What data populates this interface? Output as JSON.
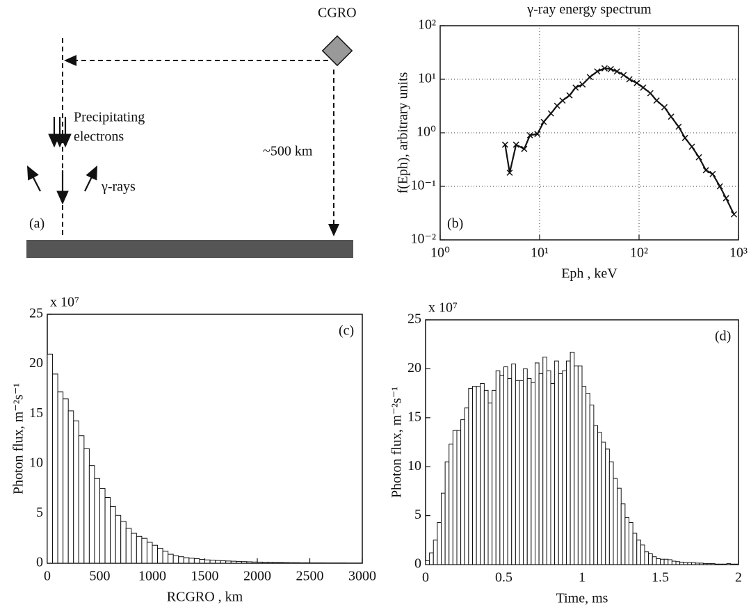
{
  "diagram": {
    "satellite": "CGRO",
    "electrons": [
      "Precipitating",
      "electrons"
    ],
    "altitude": "~500 km",
    "gamma": "γ-rays",
    "panel": "(a)"
  },
  "chart_data": [
    {
      "type": "line",
      "title": "γ-ray energy spectrum",
      "x_label": "Eph , keV",
      "y_label": "f(Eph), arbitrary units",
      "panel": "(b)",
      "xscale": "log",
      "yscale": "log",
      "grid": true,
      "marker": "x",
      "color": "#111111",
      "xlim": [
        1,
        1000
      ],
      "ylim": [
        0.01,
        100
      ],
      "xticks": [
        {
          "value": 1,
          "label": "10⁰"
        },
        {
          "value": 10,
          "label": "10¹"
        },
        {
          "value": 100,
          "label": "10²"
        },
        {
          "value": 1000,
          "label": "10³"
        }
      ],
      "yticks": [
        {
          "value": 0.01,
          "label": "10⁻²"
        },
        {
          "value": 0.1,
          "label": "10⁻¹"
        },
        {
          "value": 1,
          "label": "10⁰"
        },
        {
          "value": 10,
          "label": "10¹"
        },
        {
          "value": 100,
          "label": "10²"
        }
      ],
      "x": [
        4.5,
        5,
        5.8,
        7,
        8,
        9.5,
        11,
        13,
        15,
        17,
        20,
        23,
        27,
        32,
        38,
        45,
        52,
        60,
        70,
        80,
        95,
        110,
        130,
        150,
        180,
        210,
        250,
        290,
        340,
        400,
        470,
        550,
        650,
        750,
        900
      ],
      "values": [
        0.6,
        0.18,
        0.6,
        0.5,
        0.9,
        0.95,
        1.6,
        2.3,
        3.2,
        4,
        5,
        7,
        8,
        11,
        14,
        16,
        15.5,
        14,
        12,
        10,
        8.5,
        7,
        5.5,
        4,
        3,
        2,
        1.3,
        0.8,
        0.55,
        0.35,
        0.2,
        0.17,
        0.1,
        0.06,
        0.03
      ]
    },
    {
      "type": "histogram",
      "x_label": "RCGRO , km",
      "y_label": "Photon flux, m⁻²s⁻¹",
      "panel": "(c)",
      "multiplier": "x 10⁷",
      "color": "#ffffff",
      "xlim": [
        0,
        3000
      ],
      "ylim": [
        0,
        25
      ],
      "xticks": [
        0,
        500,
        1000,
        1500,
        2000,
        2500,
        3000
      ],
      "yticks": [
        0,
        5,
        10,
        15,
        20,
        25
      ],
      "bins": [
        0,
        50,
        100,
        150,
        200,
        250,
        300,
        350,
        400,
        450,
        500,
        550,
        600,
        650,
        700,
        750,
        800,
        850,
        900,
        950,
        1000,
        1050,
        1100,
        1150,
        1200,
        1250,
        1300,
        1350,
        1400,
        1450,
        1500,
        1550,
        1600,
        1650,
        1700,
        1750,
        1800,
        1850,
        1900,
        1950,
        2000,
        2050,
        2100,
        2150,
        2200,
        2250,
        2300,
        2350,
        2400,
        2450,
        2500,
        2550,
        2600,
        2650,
        2700,
        2750,
        2800,
        2850,
        2900,
        2950,
        3000
      ],
      "values": [
        21,
        19,
        17.2,
        16.5,
        15.3,
        14.3,
        12.8,
        11.5,
        9.8,
        8.5,
        7.5,
        6.6,
        5.7,
        4.8,
        4.2,
        3.5,
        3,
        2.7,
        2.5,
        2.1,
        1.8,
        1.5,
        1.2,
        0.9,
        0.75,
        0.65,
        0.55,
        0.5,
        0.45,
        0.38,
        0.33,
        0.3,
        0.27,
        0.24,
        0.22,
        0.2,
        0.18,
        0.16,
        0.14,
        0.12,
        0.11,
        0.1,
        0.09,
        0.08,
        0.07,
        0.06,
        0.05,
        0.05,
        0.04,
        0.04,
        0.03,
        0.03,
        0.03,
        0.02,
        0.02,
        0.02,
        0.02,
        0.01,
        0.01,
        0.01
      ]
    },
    {
      "type": "histogram",
      "x_label": "Time, ms",
      "y_label": "Photon flux, m⁻²s⁻¹",
      "panel": "(d)",
      "multiplier": "x 10⁷",
      "color": "#ffffff",
      "xlim": [
        0,
        2
      ],
      "ylim": [
        0,
        25
      ],
      "xticks": [
        0,
        0.5,
        1,
        1.5,
        2
      ],
      "yticks": [
        0,
        5,
        10,
        15,
        20,
        25
      ],
      "bins": [
        0,
        0.025,
        0.05,
        0.075,
        0.1,
        0.125,
        0.15,
        0.175,
        0.2,
        0.225,
        0.25,
        0.275,
        0.3,
        0.325,
        0.35,
        0.375,
        0.4,
        0.425,
        0.45,
        0.475,
        0.5,
        0.525,
        0.55,
        0.575,
        0.6,
        0.625,
        0.65,
        0.675,
        0.7,
        0.725,
        0.75,
        0.775,
        0.8,
        0.825,
        0.85,
        0.875,
        0.9,
        0.925,
        0.95,
        0.975,
        1,
        1.025,
        1.05,
        1.075,
        1.1,
        1.125,
        1.15,
        1.175,
        1.2,
        1.225,
        1.25,
        1.275,
        1.3,
        1.325,
        1.35,
        1.375,
        1.4,
        1.425,
        1.45,
        1.475,
        1.5,
        1.525,
        1.55,
        1.575,
        1.6,
        1.625,
        1.65,
        1.675,
        1.7,
        1.725,
        1.75,
        1.775,
        1.8,
        1.825,
        1.85,
        1.875,
        1.9,
        1.925,
        1.95,
        1.975,
        2
      ],
      "values": [
        0.4,
        1.2,
        2.5,
        4.3,
        7.3,
        10.5,
        12.3,
        13.7,
        13.7,
        14.8,
        16,
        18,
        18.2,
        18.2,
        18.5,
        17.8,
        16.5,
        17.8,
        19.8,
        19.3,
        20.2,
        19,
        20.5,
        18.8,
        18.8,
        20,
        19,
        18.6,
        20.6,
        19.5,
        21.2,
        19.8,
        18.5,
        20.8,
        19.5,
        19.8,
        20.8,
        21.7,
        20.3,
        20.3,
        18.2,
        17.5,
        16.3,
        14.2,
        13.5,
        12.5,
        11.8,
        10.5,
        8.8,
        7.8,
        6.2,
        4.8,
        4.3,
        3.2,
        2.5,
        2,
        1.3,
        1.1,
        0.8,
        0.6,
        0.55,
        0.55,
        0.5,
        0.35,
        0.3,
        0.25,
        0.2,
        0.2,
        0.2,
        0.15,
        0.15,
        0.1,
        0.1,
        0.1,
        0.05,
        0.05,
        0.05,
        0.1,
        0.05,
        0.05
      ]
    }
  ]
}
